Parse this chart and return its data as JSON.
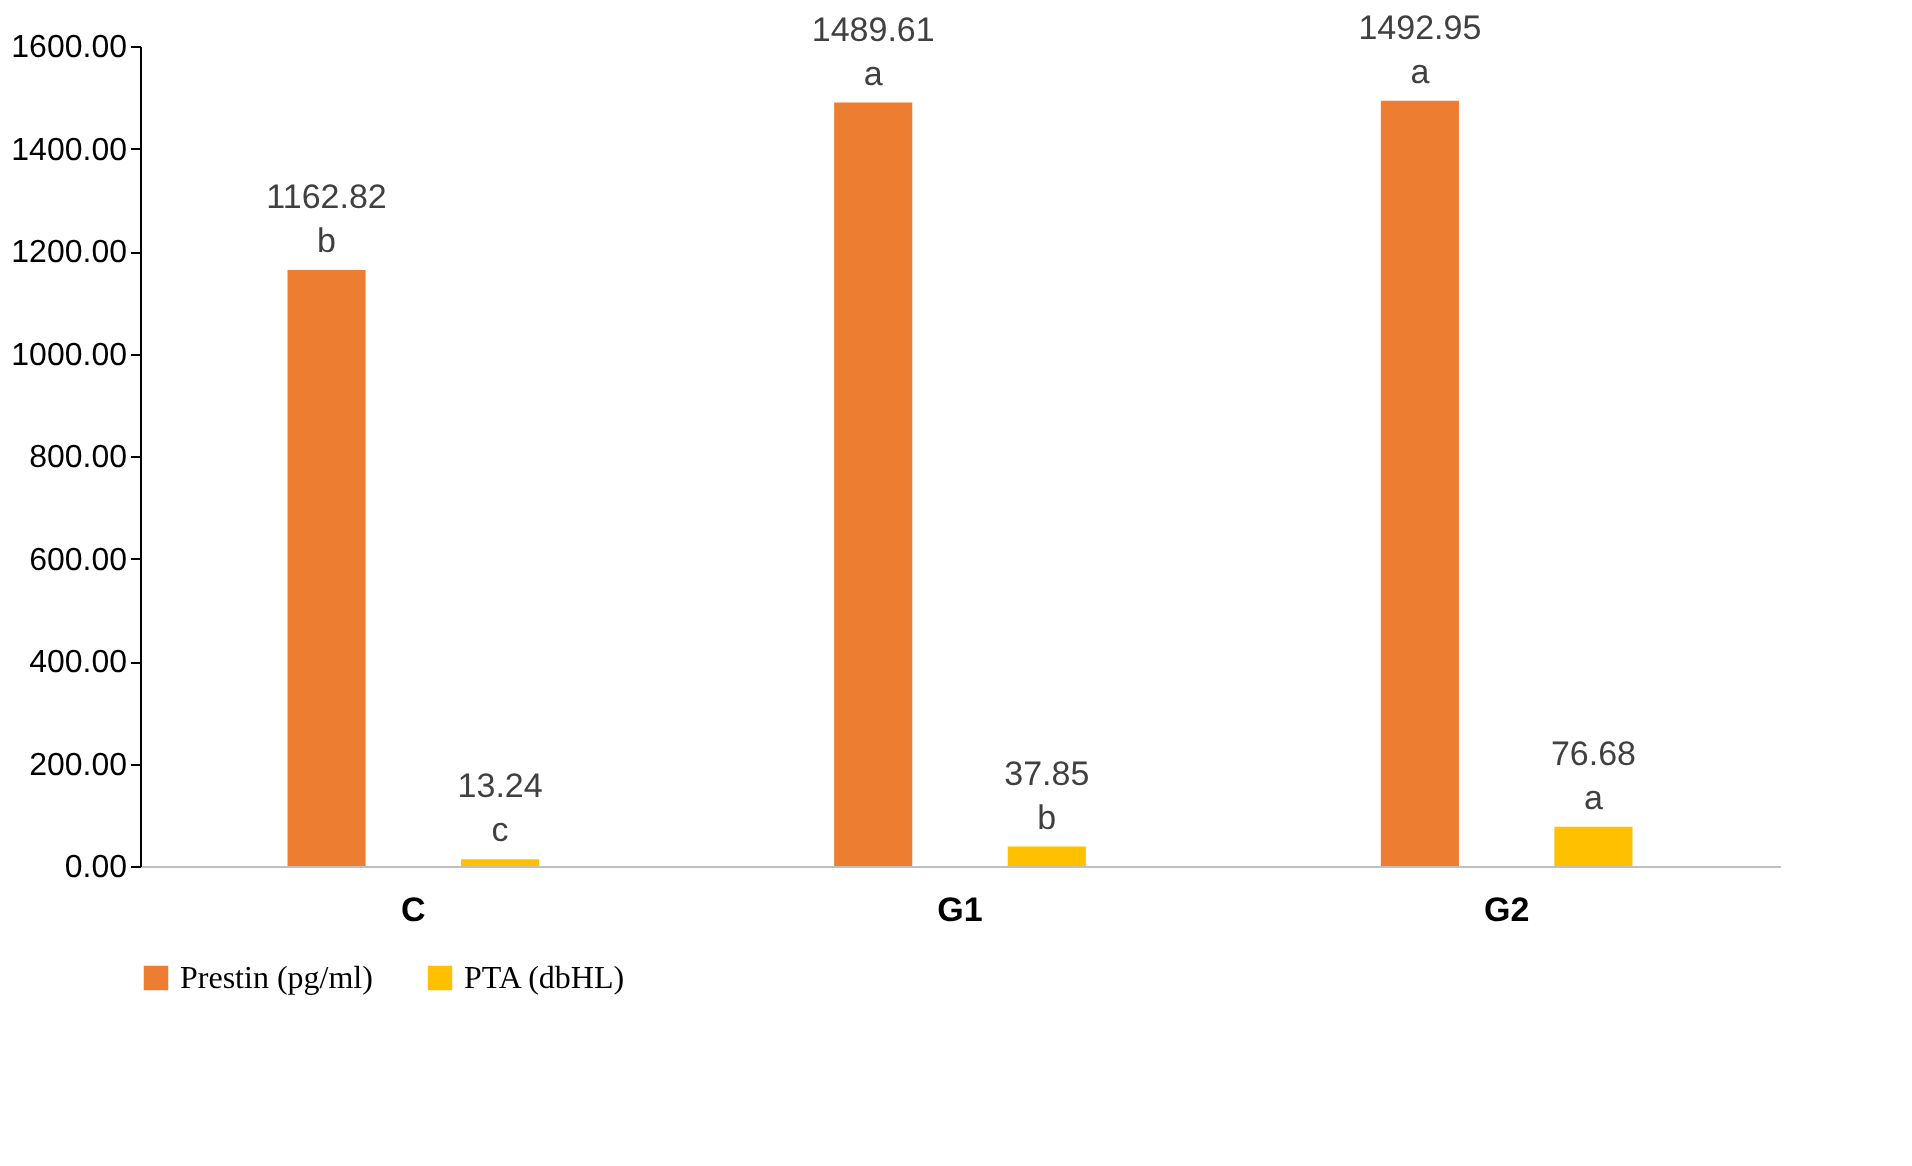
{
  "chart_data": {
    "type": "bar",
    "categories": [
      "C",
      "G1",
      "G2"
    ],
    "series": [
      {
        "name": "Prestin (pg/ml)",
        "color": "#ed7d31",
        "values": [
          1162.82,
          1489.61,
          1492.95
        ],
        "value_labels": [
          "1162.82\nb",
          "1489.61\na",
          "1492.95\na"
        ]
      },
      {
        "name": "PTA (dbHL)",
        "color": "#ffc000",
        "values": [
          13.24,
          37.85,
          76.68
        ],
        "value_labels": [
          "13.24\nc",
          "37.85\nb",
          "76.68\na"
        ]
      }
    ],
    "ylim": [
      0,
      1600
    ],
    "yticks": [
      {
        "value": 0,
        "label": "0.00"
      },
      {
        "value": 200,
        "label": "200.00"
      },
      {
        "value": 400,
        "label": "400.00"
      },
      {
        "value": 600,
        "label": "600.00"
      },
      {
        "value": 800,
        "label": "800.00"
      },
      {
        "value": 1000,
        "label": "1000.00"
      },
      {
        "value": 1200,
        "label": "1200.00"
      },
      {
        "value": 1400,
        "label": "1400.00"
      },
      {
        "value": 1600,
        "label": "1600.00"
      }
    ],
    "grid": false,
    "legend": "bottom"
  }
}
